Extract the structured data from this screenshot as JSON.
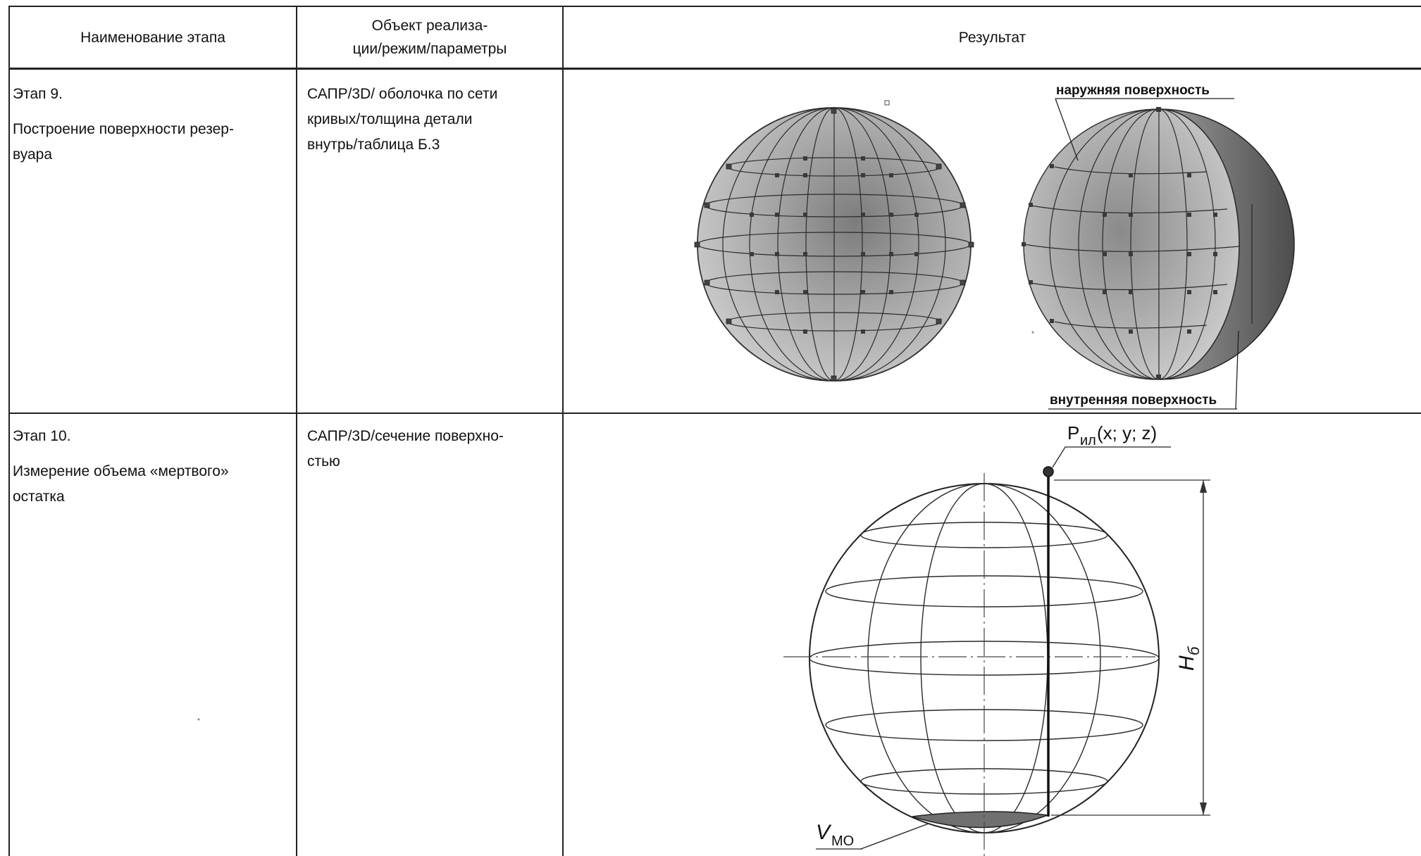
{
  "header": {
    "col1": "Наименование этапа",
    "col2_line1": "Объект реализа-",
    "col2_line2": "ции/режим/параметры",
    "col3": "Результат"
  },
  "rows": [
    {
      "stage": "Этап 9.",
      "name_lines": [
        "Построение поверхности резер-",
        "вуара"
      ],
      "params_lines": [
        "САПР/3D/ оболочка по сети",
        "кривых/толщина детали",
        "внутрь/таблица Б.3"
      ],
      "labels": {
        "outer": "наружняя поверхность",
        "inner": "внутренняя поверхность"
      }
    },
    {
      "stage": "Этап 10.",
      "name_lines": [
        "Измерение объема «мертвого»",
        "остатка"
      ],
      "params_lines": [
        "САПР/3D/сечение поверхно-",
        "стью"
      ],
      "labels": {
        "point_main": "P",
        "point_sub": "ил",
        "point_coords": " (x; y; z)",
        "height_main": "H",
        "height_sub": "б",
        "volume_main": "V",
        "volume_sub": "MO"
      }
    }
  ]
}
